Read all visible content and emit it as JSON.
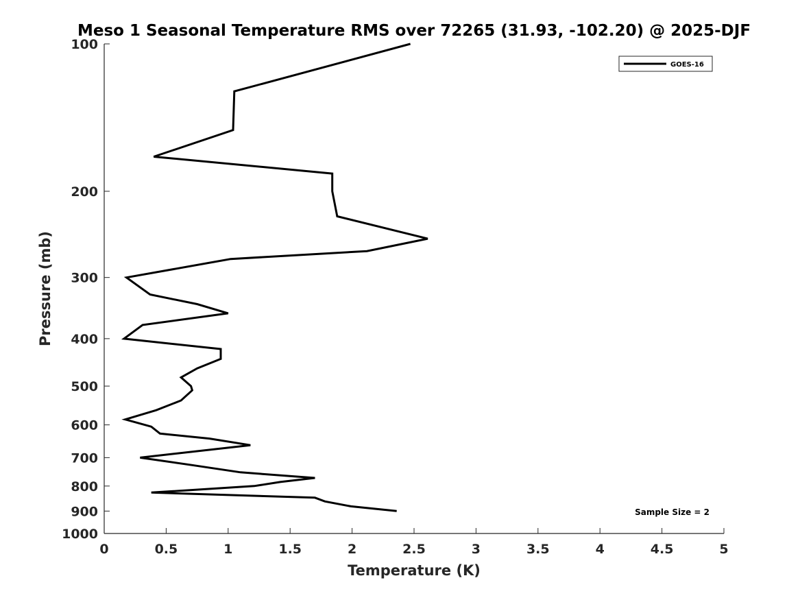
{
  "chart_data": {
    "type": "line",
    "title": "Meso 1 Seasonal Temperature RMS over 72265 (31.93, -102.20) @ 2025-DJF",
    "xlabel": "Temperature (K)",
    "ylabel": "Pressure (mb)",
    "xlim": [
      0,
      5
    ],
    "ylim": [
      1000,
      100
    ],
    "yscale": "log",
    "x_ticks": [
      0,
      0.5,
      1,
      1.5,
      2,
      2.5,
      3,
      3.5,
      4,
      4.5,
      5
    ],
    "x_tick_labels": [
      "0",
      "0.5",
      "1",
      "1.5",
      "2",
      "2.5",
      "3",
      "3.5",
      "4",
      "4.5",
      "5"
    ],
    "y_ticks": [
      100,
      200,
      300,
      400,
      500,
      600,
      700,
      800,
      900,
      1000
    ],
    "y_tick_labels": [
      "100",
      "200",
      "300",
      "400",
      "500",
      "600",
      "700",
      "800",
      "900",
      "1000"
    ],
    "grid": false,
    "legend_position": "top-right",
    "annotation": "Sample Size = 2",
    "series": [
      {
        "name": "GOES-16",
        "color": "#000000",
        "points": [
          {
            "x": 2.47,
            "y": 100
          },
          {
            "x": 1.05,
            "y": 125
          },
          {
            "x": 1.04,
            "y": 150
          },
          {
            "x": 0.4,
            "y": 170
          },
          {
            "x": 1.84,
            "y": 184
          },
          {
            "x": 1.84,
            "y": 200
          },
          {
            "x": 1.88,
            "y": 225
          },
          {
            "x": 2.61,
            "y": 250
          },
          {
            "x": 2.12,
            "y": 265
          },
          {
            "x": 1.02,
            "y": 275
          },
          {
            "x": 0.18,
            "y": 300
          },
          {
            "x": 0.37,
            "y": 325
          },
          {
            "x": 0.75,
            "y": 340
          },
          {
            "x": 1.0,
            "y": 355
          },
          {
            "x": 0.31,
            "y": 375
          },
          {
            "x": 0.16,
            "y": 400
          },
          {
            "x": 0.94,
            "y": 420
          },
          {
            "x": 0.94,
            "y": 440
          },
          {
            "x": 0.75,
            "y": 460
          },
          {
            "x": 0.62,
            "y": 480
          },
          {
            "x": 0.7,
            "y": 500
          },
          {
            "x": 0.71,
            "y": 510
          },
          {
            "x": 0.62,
            "y": 535
          },
          {
            "x": 0.42,
            "y": 560
          },
          {
            "x": 0.17,
            "y": 585
          },
          {
            "x": 0.38,
            "y": 605
          },
          {
            "x": 0.45,
            "y": 625
          },
          {
            "x": 0.85,
            "y": 640
          },
          {
            "x": 1.18,
            "y": 660
          },
          {
            "x": 0.29,
            "y": 700
          },
          {
            "x": 0.71,
            "y": 725
          },
          {
            "x": 1.1,
            "y": 750
          },
          {
            "x": 1.7,
            "y": 770
          },
          {
            "x": 1.42,
            "y": 785
          },
          {
            "x": 1.21,
            "y": 800
          },
          {
            "x": 0.38,
            "y": 825
          },
          {
            "x": 1.7,
            "y": 845
          },
          {
            "x": 1.78,
            "y": 860
          },
          {
            "x": 1.99,
            "y": 880
          },
          {
            "x": 2.36,
            "y": 900
          }
        ]
      }
    ]
  }
}
